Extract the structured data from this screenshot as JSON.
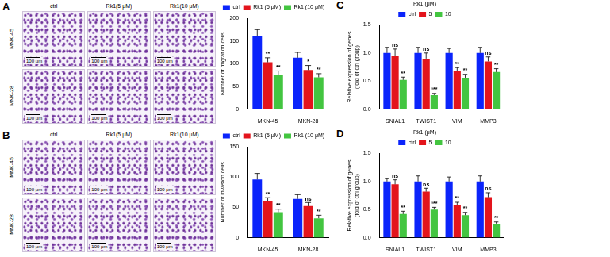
{
  "image_panels": [
    {
      "panel": "A",
      "columns": [
        "ctrl",
        "Rk1(5 μM)",
        "Rk1(10 μM)"
      ],
      "rows": [
        "MNK-45",
        "MNK-28"
      ],
      "scale_bar": "100 μm"
    },
    {
      "panel": "B",
      "columns": [
        "ctrl",
        "Rk1(5 μM)",
        "Rk1(10 μM)"
      ],
      "rows": [
        "MNK-45",
        "MNK-28"
      ],
      "scale_bar": "100 μm"
    }
  ],
  "chart_data": [
    {
      "type": "bar",
      "y_label": "Number of migration cells",
      "categories": [
        "MKN-45",
        "MKN-28"
      ],
      "ylim": [
        0,
        200
      ],
      "yticks": [
        0,
        50,
        100,
        150,
        200
      ],
      "grid": false,
      "legend": "top",
      "series": [
        {
          "name": "ctrl",
          "color": "#0b24fb",
          "values": [
            160,
            113
          ],
          "errors": [
            15,
            12
          ]
        },
        {
          "name": "Rk1 (5 μM)",
          "color": "#e3141c",
          "values": [
            103,
            86
          ],
          "errors": [
            10,
            10
          ],
          "significance": [
            "**",
            "*"
          ]
        },
        {
          "name": "Rk1 (10 μM)",
          "color": "#43c540",
          "values": [
            76,
            70
          ],
          "errors": [
            8,
            8
          ],
          "significance": [
            "**",
            "**"
          ]
        }
      ]
    },
    {
      "type": "bar",
      "y_label": "Number of invasion cells",
      "categories": [
        "MKN-45",
        "MKN-28"
      ],
      "ylim": [
        0,
        150
      ],
      "yticks": [
        0,
        50,
        100,
        150
      ],
      "grid": false,
      "legend": "top",
      "series": [
        {
          "name": "ctrl",
          "color": "#0b24fb",
          "values": [
            96,
            64
          ],
          "errors": [
            10,
            7
          ]
        },
        {
          "name": "Rk1 (5 μM)",
          "color": "#e3141c",
          "values": [
            60,
            52
          ],
          "errors": [
            6,
            6
          ],
          "significance": [
            "**",
            "ns"
          ]
        },
        {
          "name": "Rk1 (10 μM)",
          "color": "#43c540",
          "values": [
            42,
            32
          ],
          "errors": [
            5,
            5
          ],
          "significance": [
            "**",
            "**"
          ]
        }
      ]
    },
    {
      "type": "bar",
      "panel": "C",
      "y_label": [
        "Relative expression of genes",
        "(fold of ctrl group)"
      ],
      "categories": [
        "SNIAL1",
        "TWIST1",
        "VIM",
        "MMP3"
      ],
      "ylim": [
        0,
        1.5
      ],
      "yticks": [
        {
          "value": 0,
          "label": "0.0"
        },
        0.5,
        {
          "value": 1,
          "label": "1.0"
        },
        1.5
      ],
      "grid": false,
      "legend": "top",
      "legend_title": "Rk1 (μM)",
      "series": [
        {
          "name": "ctrl",
          "color": "#0b24fb",
          "values": [
            1.0,
            1.0,
            1.0,
            1.0
          ],
          "errors": [
            0.1,
            0.1,
            0.08,
            0.1
          ]
        },
        {
          "name": "5",
          "color": "#e3141c",
          "values": [
            0.95,
            0.9,
            0.68,
            0.85
          ],
          "errors": [
            0.12,
            0.1,
            0.06,
            0.08
          ],
          "significance": [
            "ns",
            "ns",
            "**",
            "ns"
          ]
        },
        {
          "name": "10",
          "color": "#43c540",
          "values": [
            0.52,
            0.25,
            0.56,
            0.66
          ],
          "errors": [
            0.05,
            0.03,
            0.06,
            0.06
          ],
          "significance": [
            "**",
            "***",
            "**",
            "**"
          ]
        }
      ]
    },
    {
      "type": "bar",
      "panel": "D",
      "y_label": [
        "Relative expression of genes",
        "(fold of ctrl group)"
      ],
      "categories": [
        "SNIAL1",
        "TWIST1",
        "VIM",
        "MMP3"
      ],
      "ylim": [
        0,
        1.5
      ],
      "yticks": [
        {
          "value": 0,
          "label": "0.0"
        },
        0.5,
        {
          "value": 1,
          "label": "1.0"
        },
        1.5
      ],
      "grid": false,
      "legend": "top",
      "legend_title": "Rk1 (μM)",
      "series": [
        {
          "name": "ctrl",
          "color": "#0b24fb",
          "values": [
            1.0,
            1.0,
            1.0,
            1.0
          ],
          "errors": [
            0.05,
            0.1,
            0.08,
            0.1
          ]
        },
        {
          "name": "5",
          "color": "#e3141c",
          "values": [
            0.95,
            0.82,
            0.58,
            0.72
          ],
          "errors": [
            0.08,
            0.06,
            0.05,
            0.08
          ],
          "significance": [
            "ns",
            "ns",
            "**",
            "ns"
          ]
        },
        {
          "name": "10",
          "color": "#43c540",
          "values": [
            0.42,
            0.5,
            0.4,
            0.25
          ],
          "errors": [
            0.05,
            0.04,
            0.05,
            0.03
          ],
          "significance": [
            "**",
            "***",
            "**",
            "**"
          ]
        }
      ]
    }
  ]
}
